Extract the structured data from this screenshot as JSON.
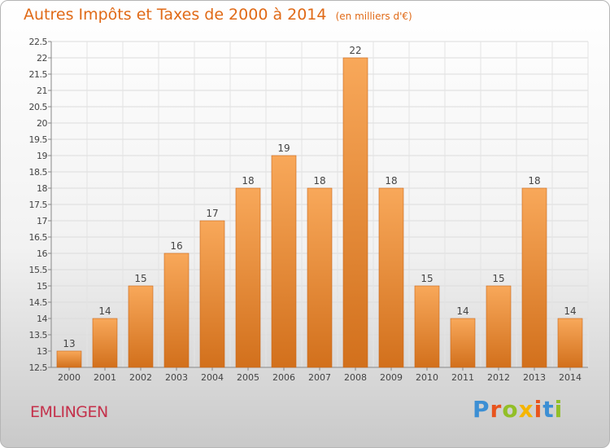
{
  "header": {
    "title": "Autres Impôts et Taxes de 2000 à 2014",
    "units": "(en milliers d'€)"
  },
  "footer": {
    "commune": "EMLINGEN",
    "brand_letters": [
      "P",
      "r",
      "o",
      "x",
      "i",
      "t",
      "i"
    ]
  },
  "colors": {
    "bar_light": "#f8a85a",
    "bar_dark": "#d2701c",
    "bar_edge": "#c9661a",
    "title": "#e06a17",
    "commune": "#c4314b"
  },
  "chart_data": {
    "type": "bar",
    "categories": [
      "2000",
      "2001",
      "2002",
      "2003",
      "2004",
      "2005",
      "2006",
      "2007",
      "2008",
      "2009",
      "2010",
      "2011",
      "2012",
      "2013",
      "2014"
    ],
    "values": [
      13,
      14,
      15,
      16,
      17,
      18,
      19,
      18,
      22,
      18,
      15,
      14,
      15,
      18,
      14
    ],
    "title": "Autres Impôts et Taxes de 2000 à 2014",
    "subtitle": "(en milliers d'€)",
    "ylim": [
      12.5,
      22.5
    ],
    "y_ticks": [
      "12.5",
      "13",
      "13.5",
      "14",
      "14.5",
      "15",
      "15.5",
      "16",
      "16.5",
      "17",
      "17.5",
      "18",
      "18.5",
      "19",
      "19.5",
      "20",
      "20.5",
      "21",
      "21.5",
      "22",
      "22.5"
    ],
    "grid": true,
    "legend": "none"
  }
}
